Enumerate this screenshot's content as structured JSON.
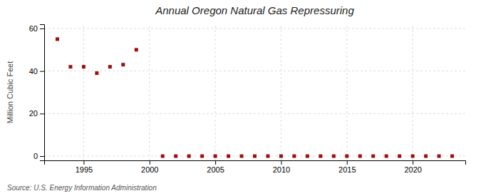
{
  "chart_data": {
    "type": "scatter",
    "title": "Annual Oregon Natural Gas Repressuring",
    "ylabel": "Million Cubic Feet",
    "source": "Source: U.S. Energy Information Administration",
    "x": [
      1993,
      1994,
      1995,
      1996,
      1997,
      1998,
      1999,
      2001,
      2002,
      2003,
      2004,
      2005,
      2006,
      2007,
      2008,
      2009,
      2010,
      2011,
      2012,
      2013,
      2014,
      2015,
      2016,
      2017,
      2018,
      2019,
      2020,
      2021,
      2022,
      2023
    ],
    "values": [
      55,
      42,
      42,
      39,
      42,
      43,
      50,
      0,
      0,
      0,
      0,
      0,
      0,
      0,
      0,
      0,
      0,
      0,
      0,
      0,
      0,
      0,
      0,
      0,
      0,
      0,
      0,
      0,
      0,
      0
    ],
    "color": "#9b1010",
    "marker": "square",
    "xlim": [
      1992,
      2024
    ],
    "ylim": [
      -2,
      62
    ],
    "xticks": [
      1995,
      2000,
      2005,
      2010,
      2015,
      2020
    ],
    "yticks": [
      0,
      20,
      40,
      60
    ],
    "grid": true
  }
}
